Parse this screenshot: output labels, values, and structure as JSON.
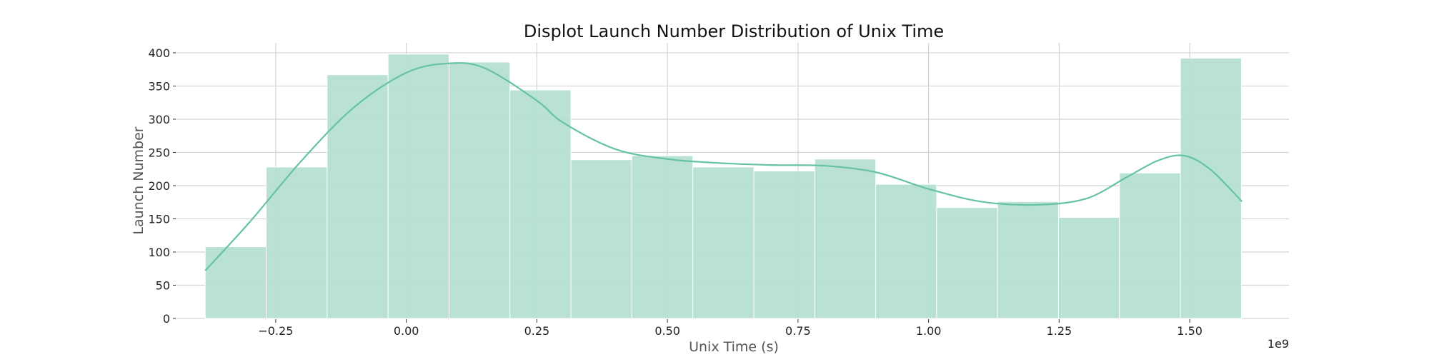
{
  "chart_data": {
    "type": "bar",
    "title": "Displot Launch Number Distribution of Unix Time",
    "xlabel": "Unix Time (s)",
    "ylabel": "Launch Number",
    "x_offset_label": "1e9",
    "xlim": [
      -0.44,
      1.69
    ],
    "ylim": [
      0,
      415
    ],
    "xticks": [
      -0.25,
      0.0,
      0.25,
      0.5,
      0.75,
      1.0,
      1.25,
      1.5
    ],
    "xtick_labels": [
      "−0.25",
      "0.00",
      "0.25",
      "0.50",
      "0.75",
      "1.00",
      "1.25",
      "1.50"
    ],
    "yticks": [
      0,
      50,
      100,
      150,
      200,
      250,
      300,
      350,
      400
    ],
    "ytick_labels": [
      "0",
      "50",
      "100",
      "150",
      "200",
      "250",
      "300",
      "350",
      "400"
    ],
    "grid": true,
    "bins": {
      "start": -0.385,
      "width": 0.1167,
      "values": [
        108,
        228,
        367,
        398,
        386,
        344,
        239,
        245,
        228,
        222,
        240,
        202,
        167,
        176,
        152,
        219,
        392
      ]
    },
    "kde": {
      "name": "KDE",
      "x": [
        -0.385,
        -0.3,
        -0.2,
        -0.1,
        0.0,
        0.08,
        0.15,
        0.25,
        0.3,
        0.4,
        0.5,
        0.6,
        0.7,
        0.8,
        0.9,
        1.0,
        1.1,
        1.2,
        1.3,
        1.38,
        1.44,
        1.49,
        1.54,
        1.6
      ],
      "y": [
        72,
        145,
        238,
        318,
        370,
        384,
        377,
        328,
        295,
        255,
        240,
        234,
        231,
        230,
        220,
        195,
        176,
        171,
        180,
        213,
        238,
        245,
        224,
        176
      ]
    },
    "colors": {
      "bar": "#b3e0cf",
      "bar_edge": "#ffffff",
      "kde_line": "#66c2a5",
      "grid": "#d4d4d4"
    }
  }
}
